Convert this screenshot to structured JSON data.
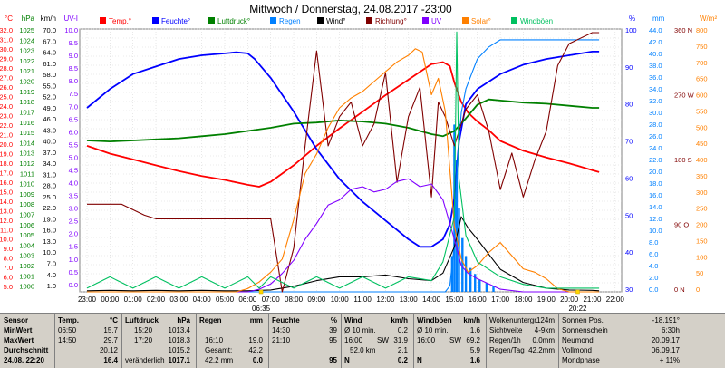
{
  "chart_data": {
    "type": "line",
    "title": "Mittwoch / Donnerstag, 24.08.2017  -23:00",
    "x_ticks": [
      "23:00",
      "00:00",
      "01:00",
      "02:00",
      "03:00",
      "04:00",
      "05:00",
      "06:00",
      "07:00",
      "08:00",
      "09:00",
      "10:00",
      "11:00",
      "12:00",
      "13:00",
      "14:00",
      "15:00",
      "16:00",
      "17:00",
      "18:00",
      "19:00",
      "20:00",
      "21:00",
      "22:00"
    ],
    "sunrise_label": "06:35",
    "sunset_label": "20:22",
    "axes_left": [
      {
        "unit": "°C",
        "color": "#ff0000",
        "ticks": [
          "32.0",
          "31.0",
          "30.0",
          "29.0",
          "28.0",
          "27.0",
          "26.0",
          "25.0",
          "24.0",
          "23.0",
          "22.0",
          "21.0",
          "20.0",
          "19.0",
          "18.0",
          "17.0",
          "16.0",
          "15.0",
          "14.0",
          "13.0",
          "12.0",
          "11.0",
          "10.0",
          "9.0",
          "8.0",
          "7.0",
          "6.0",
          "5.0"
        ]
      },
      {
        "unit": "hPa",
        "color": "#008000",
        "ticks": [
          "1025",
          "1024",
          "1023",
          "1022",
          "1021",
          "1020",
          "1019",
          "1018",
          "1017",
          "1016",
          "1015",
          "1014",
          "1013",
          "1012",
          "1011",
          "1010",
          "1009",
          "1008",
          "1007",
          "1006",
          "1005",
          "1004",
          "1003",
          "1002",
          "1001",
          "1000"
        ]
      },
      {
        "unit": "km/h",
        "color": "#000000",
        "ticks": [
          "70.0",
          "67.0",
          "64.0",
          "61.0",
          "58.0",
          "55.0",
          "52.0",
          "49.0",
          "46.0",
          "43.0",
          "40.0",
          "37.0",
          "34.0",
          "31.0",
          "28.0",
          "25.0",
          "22.0",
          "19.0",
          "16.0",
          "13.0",
          "10.0",
          "7.0",
          "4.0",
          "1.0"
        ]
      },
      {
        "unit": "UV-I",
        "color": "#8000ff",
        "ticks": [
          "10.0",
          "9.5",
          "9.0",
          "8.5",
          "8.0",
          "7.5",
          "7.0",
          "6.5",
          "6.0",
          "5.5",
          "5.0",
          "4.5",
          "4.0",
          "3.5",
          "3.0",
          "2.5",
          "2.0",
          "1.5",
          "1.0",
          "0.5",
          "0.0"
        ]
      }
    ],
    "axes_right": [
      {
        "unit": "%",
        "color": "#0000ff",
        "ticks": [
          "100",
          "90",
          "80",
          "70",
          "60",
          "50",
          "40",
          "30"
        ]
      },
      {
        "unit": "mm",
        "color": "#0080ff",
        "ticks": [
          "44.0",
          "42.0",
          "40.0",
          "38.0",
          "36.0",
          "34.0",
          "32.0",
          "30.0",
          "28.0",
          "26.0",
          "24.0",
          "22.0",
          "20.0",
          "18.0",
          "16.0",
          "14.0",
          "12.0",
          "10.0",
          "8.0",
          "6.0",
          "4.0",
          "2.0",
          "0.0"
        ]
      },
      {
        "unit": "",
        "color": "#800000",
        "ticks": [
          "360 N",
          "270 W",
          "180 S",
          "90 O",
          "0 N"
        ]
      },
      {
        "unit": "W/m²",
        "color": "#ff8000",
        "ticks": [
          "800",
          "750",
          "700",
          "650",
          "600",
          "550",
          "500",
          "450",
          "400",
          "350",
          "300",
          "250",
          "200",
          "150",
          "100",
          "50",
          "0"
        ]
      }
    ],
    "legend": [
      {
        "name": "Temp.°",
        "color": "#ff0000"
      },
      {
        "name": "Feuchte°",
        "color": "#0000ff"
      },
      {
        "name": "Luftdruck°",
        "color": "#008000"
      },
      {
        "name": "Regen",
        "color": "#0080ff"
      },
      {
        "name": "Wind°",
        "color": "#000000"
      },
      {
        "name": "Richtung°",
        "color": "#800000"
      },
      {
        "name": "UV",
        "color": "#8000ff"
      },
      {
        "name": "Solar°",
        "color": "#ff8000"
      },
      {
        "name": "Windböen",
        "color": "#00c060"
      }
    ],
    "series": [
      {
        "name": "Temp.°",
        "color": "#ff0000",
        "axis": "°C",
        "x": [
          0,
          1,
          2,
          3,
          4,
          5,
          6,
          7,
          7.5,
          8,
          9,
          10,
          11,
          12,
          13,
          14,
          14.5,
          15,
          15.5,
          15.8,
          16,
          16.3,
          16.6,
          17,
          17.5,
          18,
          19,
          20,
          21,
          22,
          22.3
        ],
        "y": [
          20.0,
          19.2,
          18.6,
          18.0,
          17.4,
          16.9,
          16.5,
          16.0,
          15.8,
          16.3,
          18.0,
          20.0,
          21.8,
          23.5,
          25.2,
          26.8,
          27.6,
          28.4,
          28.6,
          28.2,
          26.5,
          24.5,
          23.4,
          22.5,
          21.6,
          20.5,
          19.5,
          18.8,
          18.2,
          17.5,
          17.3
        ]
      },
      {
        "name": "Feuchte°",
        "color": "#0000ff",
        "axis": "%",
        "x": [
          0,
          1,
          2,
          3,
          4,
          5,
          6,
          6.5,
          7,
          7.3,
          8,
          9,
          10,
          11,
          12,
          13,
          14,
          14.5,
          15,
          15.5,
          15.8,
          16,
          16.2,
          16.5,
          17,
          18,
          19,
          20,
          21,
          22,
          22.3
        ],
        "y": [
          79,
          84,
          88,
          90,
          92,
          93,
          93.5,
          93.8,
          93.5,
          92,
          87,
          78,
          68,
          60,
          54,
          49,
          44,
          42,
          42,
          44,
          48,
          55,
          70,
          80,
          84,
          88,
          90.5,
          92,
          93,
          94,
          94
        ]
      },
      {
        "name": "Luftdruck°",
        "color": "#008000",
        "axis": "hPa",
        "x": [
          0,
          1,
          2,
          3,
          4,
          5,
          6,
          7,
          8,
          9,
          10,
          11,
          12,
          13,
          14,
          15,
          15.5,
          16,
          16.5,
          17,
          17.5,
          18,
          19,
          20,
          21,
          22,
          22.3
        ],
        "y": [
          1014.4,
          1014.3,
          1014.4,
          1014.5,
          1014.6,
          1014.8,
          1015.0,
          1015.3,
          1015.6,
          1016.0,
          1016.1,
          1016.3,
          1016.2,
          1016.0,
          1015.6,
          1015.0,
          1014.8,
          1015.3,
          1016.5,
          1017.8,
          1018.3,
          1018.2,
          1018.0,
          1017.9,
          1017.7,
          1017.5,
          1017.5
        ]
      },
      {
        "name": "Regen",
        "color": "#0080ff",
        "axis": "mm",
        "x": [
          0,
          15.6,
          15.8,
          16.0,
          16.1,
          16.3,
          16.5,
          16.8,
          17.0,
          17.5,
          18,
          19,
          20,
          22.3
        ],
        "y": [
          0,
          0,
          1,
          8,
          20,
          30,
          34,
          37,
          39,
          41,
          42.2,
          42.2,
          42.2,
          42.2
        ]
      },
      {
        "name": "Wind°",
        "color": "#000000",
        "axis": "km/h",
        "x": [
          0,
          1,
          2,
          3,
          4,
          5,
          6,
          7,
          8,
          9,
          10,
          11,
          12,
          13,
          14,
          15,
          15.5,
          16,
          16.3,
          16.6,
          17,
          17.5,
          18,
          19,
          20,
          21,
          22,
          22.3
        ],
        "y": [
          0.3,
          0.4,
          0.3,
          0.4,
          0.3,
          0.4,
          0.3,
          0.3,
          0.5,
          1.5,
          3.0,
          4.0,
          4.0,
          4.5,
          3.5,
          3.0,
          5.0,
          12.0,
          20.0,
          17.0,
          14.0,
          10.0,
          6.0,
          2.5,
          1.0,
          0.5,
          0.4,
          0.3
        ]
      },
      {
        "name": "Richtung°",
        "color": "#800000",
        "axis": "deg",
        "x": [
          0,
          1.5,
          2.5,
          3,
          4,
          5,
          6,
          7,
          8,
          8.5,
          9,
          9.5,
          10,
          10.5,
          11,
          11.5,
          12,
          12.5,
          13,
          13.5,
          14,
          14.5,
          15,
          15.3,
          15.6,
          16,
          16.5,
          17,
          17.5,
          18,
          18.5,
          19,
          19.5,
          20,
          20.5,
          21,
          22,
          22.3
        ],
        "y": [
          120,
          120,
          105,
          100,
          100,
          100,
          100,
          100,
          100,
          0,
          60,
          200,
          330,
          200,
          240,
          260,
          200,
          230,
          300,
          150,
          240,
          280,
          130,
          260,
          240,
          200,
          250,
          270,
          220,
          140,
          190,
          130,
          180,
          220,
          310,
          340,
          355,
          355
        ]
      },
      {
        "name": "UV",
        "color": "#8000ff",
        "axis": "UV-I",
        "x": [
          0,
          7,
          7.5,
          8,
          8.5,
          9,
          9.5,
          10,
          10.5,
          11,
          11.5,
          12,
          12.5,
          13,
          13.5,
          14,
          14.5,
          15,
          15.5,
          16,
          16.3,
          16.6,
          17,
          17.5,
          18,
          19,
          20,
          22.3
        ],
        "y": [
          0,
          0,
          0.1,
          0.3,
          0.7,
          1.2,
          2.0,
          2.6,
          3.3,
          3.5,
          3.9,
          4.0,
          3.8,
          3.9,
          4.2,
          4.3,
          4.0,
          4.1,
          3.5,
          2.0,
          1.0,
          0.7,
          0.5,
          0.3,
          0.1,
          0.0,
          0,
          0
        ]
      },
      {
        "name": "Solar°",
        "color": "#ff8000",
        "axis": "W/m²",
        "x": [
          0,
          6.5,
          7,
          7.5,
          8,
          8.5,
          9,
          9.5,
          10,
          10.5,
          11,
          11.5,
          12,
          12.5,
          13,
          13.5,
          14,
          14.3,
          14.6,
          15,
          15.3,
          15.6,
          16,
          16.3,
          16.6,
          17,
          17.5,
          18,
          18.5,
          19,
          19.5,
          20,
          20.5,
          21,
          22.3
        ],
        "y": [
          0,
          0,
          10,
          30,
          60,
          100,
          220,
          360,
          420,
          500,
          560,
          590,
          610,
          640,
          670,
          700,
          720,
          740,
          730,
          600,
          650,
          550,
          200,
          100,
          60,
          80,
          120,
          150,
          110,
          70,
          60,
          40,
          10,
          0,
          0
        ]
      },
      {
        "name": "Windböen",
        "color": "#00c060",
        "axis": "km/h",
        "x": [
          0,
          1,
          2,
          3,
          4,
          5,
          6,
          7,
          7.5,
          8,
          9,
          10,
          11,
          12,
          13,
          14,
          15,
          15.5,
          16,
          16.1,
          16.2,
          16.5,
          17,
          18,
          19,
          20,
          22.3
        ],
        "y": [
          1,
          4,
          1,
          4,
          1,
          4,
          1,
          4,
          1,
          4,
          1,
          4,
          1,
          4,
          1,
          4,
          3,
          8,
          20,
          69.2,
          30,
          15,
          8,
          4,
          2,
          1,
          1
        ]
      }
    ]
  },
  "table": {
    "header": {
      "sensor": "Sensor",
      "temp": "Temp.",
      "temp_unit": "°C",
      "press": "Luftdruck",
      "press_unit": "hPa",
      "rain": "Regen",
      "rain_unit": "mm",
      "hum": "Feuchte",
      "hum_unit": "%",
      "wind": "Wind",
      "wind_unit": "km/h",
      "gust": "Windböen",
      "gust_unit": "km/h"
    },
    "row_labels": {
      "min": "MinWert",
      "max": "MaxWert",
      "avg": "Durchschnitt",
      "now": "24.08.  22:20"
    },
    "temp": {
      "min_t": "06:50",
      "min_v": "15.7",
      "max_t": "14:50",
      "max_v": "29.7",
      "avg_v": "20.12",
      "now_v": "16.4"
    },
    "press": {
      "min_t": "15:20",
      "min_v": "1013.4",
      "max_t": "17:20",
      "max_v": "1018.3",
      "avg_v": "1015.2",
      "now_l": "veränderlich",
      "now_v": "1017.1"
    },
    "rain": {
      "r1_t": "16:10",
      "r1_v": "19.0",
      "r2_l": "Gesamt:",
      "r2_v": "42.2",
      "now_l": "42.2 mm",
      "now_v": "0.0"
    },
    "hum": {
      "min_t": "14:30",
      "min_v": "39",
      "max_t": "21:10",
      "max_v": "95",
      "now_v": "95"
    },
    "wind": {
      "r0_l": "Ø 10 min.",
      "r0_v": "0.2",
      "r1_t": "16:00",
      "r1_d": "SW",
      "r1_v": "31.9",
      "r2_l": "52.0 km",
      "r2_v": "2.1",
      "now_d": "N",
      "now_v": "0.2"
    },
    "gust": {
      "r0_l": "Ø 10 min.",
      "r0_v": "1.6",
      "r1_t": "16:00",
      "r1_d": "SW",
      "r1_v": "69.2",
      "r2_v": "5.9",
      "now_d": "N",
      "now_v": "1.6"
    },
    "misc1": [
      {
        "l": "Wolkenuntergr.",
        "v": "124m"
      },
      {
        "l": "Sichtweite",
        "v": "4-9km"
      },
      {
        "l": "Regen/1h",
        "v": "0.0mm"
      },
      {
        "l": "Regen/Tag",
        "v": "42.2mm"
      }
    ],
    "misc2": [
      {
        "l": "Sonnen Pos.",
        "v": "-18.191°"
      },
      {
        "l": "Sonnenschein",
        "v": "6:30h"
      },
      {
        "l": "Neumond",
        "v": "20.09.17"
      },
      {
        "l": "Vollmond",
        "v": "06.09.17"
      },
      {
        "l": "Mondphase",
        "v": "+ 11%"
      }
    ]
  }
}
